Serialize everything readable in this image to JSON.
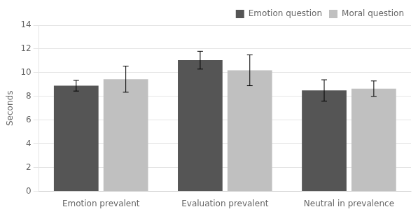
{
  "chart_data": {
    "type": "bar",
    "categories": [
      "Emotion prevalent",
      "Evaluation prevalent",
      "Neutral in prevalence"
    ],
    "series": [
      {
        "name": "Emotion question",
        "color": "#555555",
        "values": [
          8.9,
          11.05,
          8.5
        ],
        "errors": [
          0.45,
          0.75,
          0.9
        ]
      },
      {
        "name": "Moral question",
        "color": "#c0c0c0",
        "values": [
          9.45,
          10.2,
          8.65
        ],
        "errors": [
          1.1,
          1.3,
          0.65
        ]
      }
    ],
    "ylabel": "Seconds",
    "ylim": [
      0,
      14
    ],
    "yticks": [
      0,
      2,
      4,
      6,
      8,
      10,
      12,
      14
    ],
    "grid": "y",
    "legend": "upper right"
  }
}
